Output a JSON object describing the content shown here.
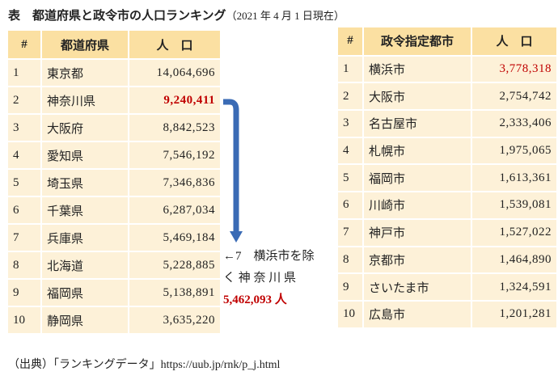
{
  "header": {
    "title": "表　都道府県と政令市の人口ランキング",
    "date_note": "（2021 年 4 月 1 日現在）"
  },
  "prefectures": {
    "columns": [
      "#",
      "都道府県",
      "人　口"
    ],
    "rows": [
      [
        "1",
        "東京都",
        "14,064,696"
      ],
      [
        "2",
        "神奈川県",
        "9,240,411"
      ],
      [
        "3",
        "大阪府",
        "8,842,523"
      ],
      [
        "4",
        "愛知県",
        "7,546,192"
      ],
      [
        "5",
        "埼玉県",
        "7,346,836"
      ],
      [
        "6",
        "千葉県",
        "6,287,034"
      ],
      [
        "7",
        "兵庫県",
        "5,469,184"
      ],
      [
        "8",
        "北海道",
        "5,228,885"
      ],
      [
        "9",
        "福岡県",
        "5,138,891"
      ],
      [
        "10",
        "静岡県",
        "3,635,220"
      ]
    ]
  },
  "cities": {
    "columns": [
      "#",
      "政令指定都市",
      "人　口"
    ],
    "rows": [
      [
        "1",
        "横浜市",
        "3,778,318"
      ],
      [
        "2",
        "大阪市",
        "2,754,742"
      ],
      [
        "3",
        "名古屋市",
        "2,333,406"
      ],
      [
        "4",
        "札幌市",
        "1,975,065"
      ],
      [
        "5",
        "福岡市",
        "1,613,361"
      ],
      [
        "6",
        "川崎市",
        "1,539,081"
      ],
      [
        "7",
        "神戸市",
        "1,527,022"
      ],
      [
        "8",
        "京都市",
        "1,464,890"
      ],
      [
        "9",
        "さいたま市",
        "1,324,591"
      ],
      [
        "10",
        "広島市",
        "1,201,281"
      ]
    ]
  },
  "annotation": {
    "lines": [
      "←7　横浜市を除",
      "く 神 奈 川 県"
    ],
    "value": "5,462,093 人"
  },
  "footer": {
    "source": "（出典）「ランキングデータ」https://uub.jp/rnk/p_j.html"
  }
}
